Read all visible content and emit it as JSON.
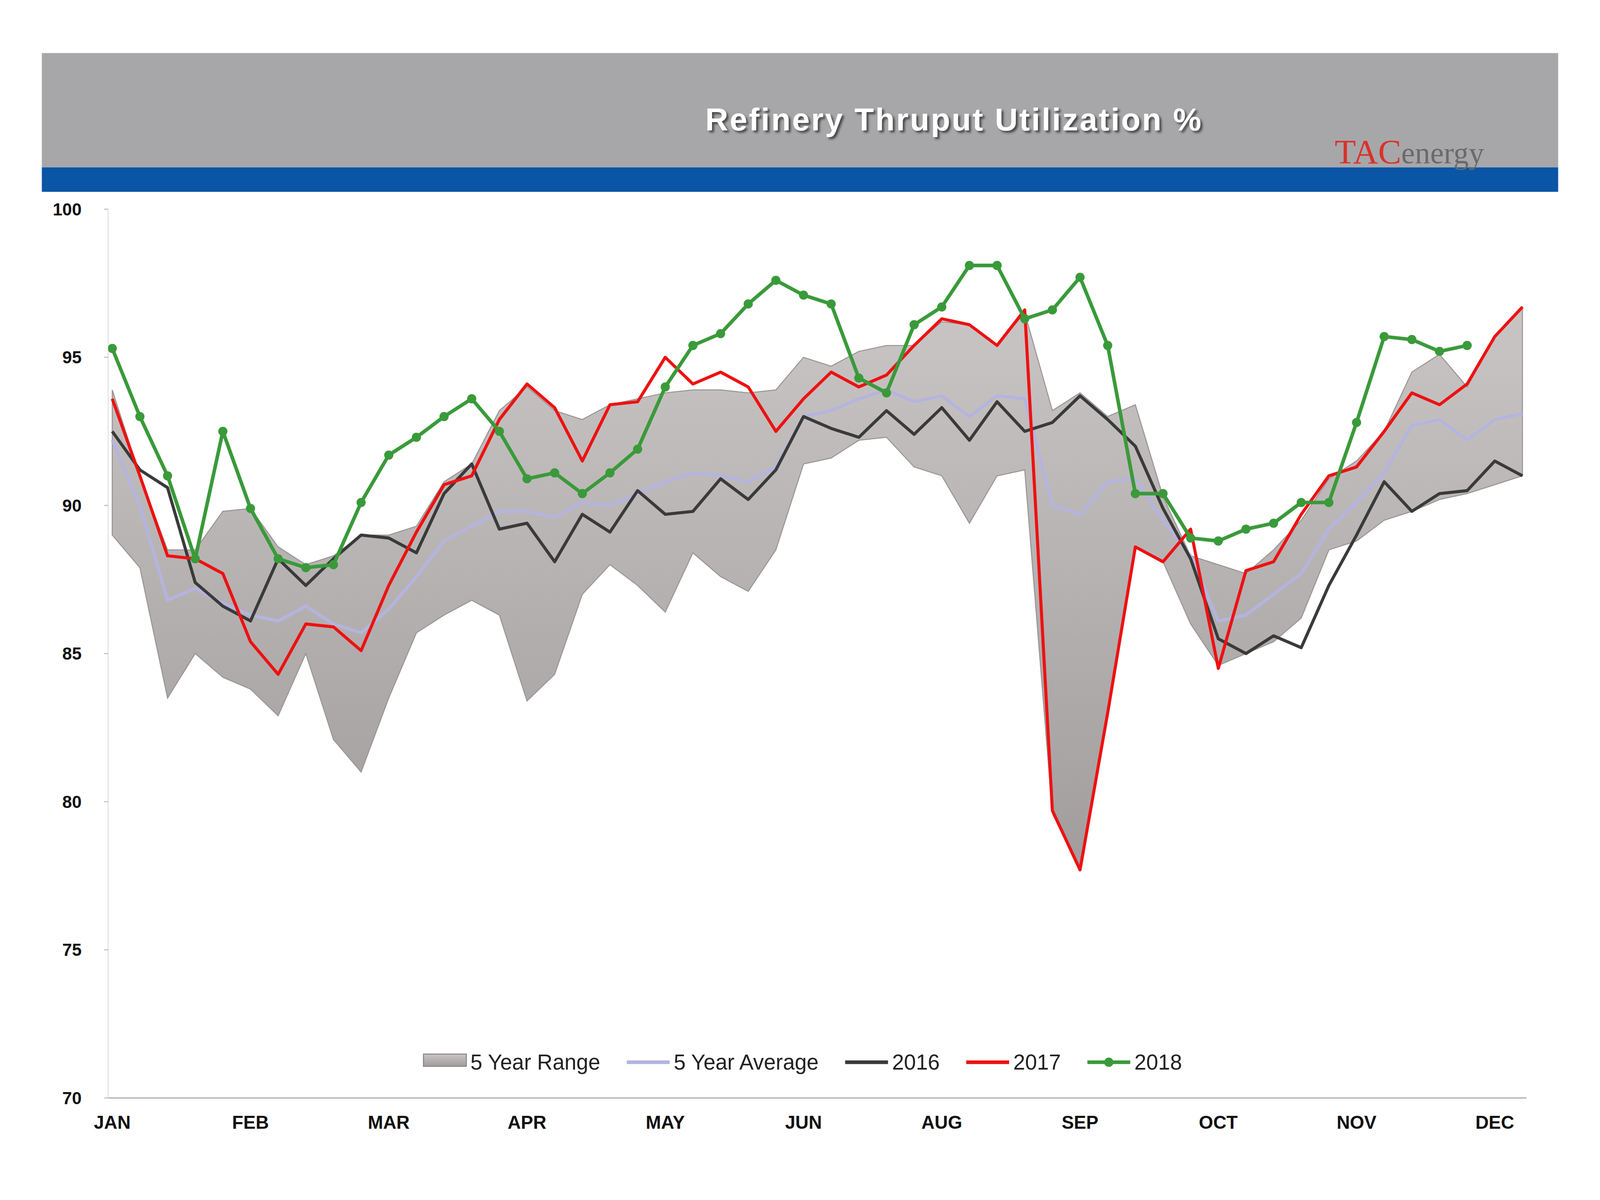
{
  "chart_data": {
    "type": "line",
    "title": "Refinery Thruput Utilization %",
    "logo": [
      "TAC",
      "energy"
    ],
    "categories": [
      "JAN",
      null,
      null,
      null,
      null,
      "FEB",
      null,
      null,
      null,
      null,
      "MAR",
      null,
      null,
      null,
      null,
      "APR",
      null,
      null,
      null,
      null,
      "MAY",
      null,
      null,
      null,
      null,
      "JUN",
      null,
      null,
      null,
      null,
      "AUG",
      null,
      null,
      null,
      null,
      "SEP",
      null,
      null,
      null,
      null,
      "OCT",
      null,
      null,
      null,
      null,
      "NOV",
      null,
      null,
      null,
      null,
      "DEC",
      null
    ],
    "ylim": [
      70,
      100
    ],
    "yticks": [
      70,
      75,
      80,
      85,
      90,
      95,
      100
    ],
    "grid": false,
    "legend": "bottom",
    "series": [
      {
        "name": "5 Year Range",
        "type": "range",
        "color": "#b3aeae",
        "values": [
          93.9,
          91.0,
          88.5,
          88.5,
          89.8,
          89.9,
          88.6,
          88.0,
          88.3,
          89.0,
          89.0,
          89.3,
          90.8,
          91.4,
          93.2,
          94.0,
          93.2,
          92.9,
          93.4,
          93.6,
          93.8,
          93.9,
          93.9,
          93.8,
          93.9,
          95.0,
          94.7,
          95.2,
          95.4,
          95.4,
          96.2,
          96.1,
          95.4,
          96.5,
          93.2,
          93.8,
          93.0,
          93.4,
          90.3,
          88.3,
          88.0,
          87.7,
          88.5,
          89.5,
          90.9,
          91.5,
          92.5,
          94.5,
          95.1,
          94.0,
          95.7,
          96.7
        ],
        "low": [
          89.0,
          87.9,
          83.5,
          85.0,
          84.2,
          83.8,
          82.9,
          85.0,
          82.1,
          81.0,
          83.5,
          85.7,
          86.3,
          86.8,
          86.3,
          83.4,
          84.3,
          87.0,
          88.0,
          87.3,
          86.4,
          88.4,
          87.6,
          87.1,
          88.5,
          91.4,
          91.6,
          92.2,
          92.3,
          91.3,
          91.0,
          89.4,
          91.0,
          91.2,
          79.6,
          77.7,
          83.0,
          88.6,
          88.1,
          86.0,
          84.6,
          85.0,
          85.4,
          86.2,
          88.5,
          88.8,
          89.5,
          89.8,
          90.2,
          90.4,
          90.7,
          91.0
        ]
      },
      {
        "name": "5 Year Average",
        "type": "line",
        "color": "#b4b4e0",
        "values": [
          92.2,
          90.0,
          86.8,
          87.2,
          86.7,
          86.3,
          86.1,
          86.6,
          86.0,
          85.7,
          86.5,
          87.6,
          88.8,
          89.3,
          89.8,
          89.8,
          89.6,
          90.1,
          90.0,
          90.4,
          90.8,
          91.1,
          91.0,
          90.8,
          91.3,
          93.0,
          93.2,
          93.6,
          93.9,
          93.5,
          93.7,
          93.0,
          93.7,
          93.6,
          90.0,
          89.7,
          90.8,
          90.9,
          89.5,
          88.3,
          86.1,
          86.3,
          87.0,
          87.7,
          89.2,
          90.1,
          91.1,
          92.7,
          92.9,
          92.2,
          92.9,
          93.1
        ]
      },
      {
        "name": "2016",
        "type": "line",
        "color": "#3a3a3a",
        "values": [
          92.5,
          91.2,
          90.6,
          87.4,
          86.6,
          86.1,
          88.2,
          87.3,
          88.2,
          89.0,
          88.9,
          88.4,
          90.4,
          91.4,
          89.2,
          89.4,
          88.1,
          89.7,
          89.1,
          90.5,
          89.7,
          89.8,
          90.9,
          90.2,
          91.2,
          93.0,
          92.6,
          92.3,
          93.2,
          92.4,
          93.3,
          92.2,
          93.5,
          92.5,
          92.8,
          93.7,
          92.9,
          92.0,
          89.9,
          88.2,
          85.5,
          85.0,
          85.6,
          85.2,
          87.3,
          89.0,
          90.8,
          89.8,
          90.4,
          90.5,
          91.5,
          91.0
        ]
      },
      {
        "name": "2017",
        "type": "line",
        "color": "#ee1111",
        "values": [
          93.6,
          91.0,
          88.3,
          88.2,
          87.7,
          85.4,
          84.3,
          86.0,
          85.9,
          85.1,
          87.3,
          89.1,
          90.7,
          91.0,
          92.9,
          94.1,
          93.3,
          91.5,
          93.4,
          93.5,
          95.0,
          94.1,
          94.5,
          94.0,
          92.5,
          93.6,
          94.5,
          94.0,
          94.4,
          95.4,
          96.3,
          96.1,
          95.4,
          96.6,
          79.7,
          77.7,
          83.0,
          88.6,
          88.1,
          89.2,
          84.5,
          87.8,
          88.1,
          89.7,
          91.0,
          91.3,
          92.5,
          93.8,
          93.4,
          94.1,
          95.7,
          96.7
        ]
      },
      {
        "name": "2018",
        "type": "line",
        "color": "#3a9a3a",
        "marker": "circle",
        "values": [
          95.3,
          93.0,
          91.0,
          88.2,
          92.5,
          89.9,
          88.2,
          87.9,
          88.0,
          90.1,
          91.7,
          92.3,
          93.0,
          93.6,
          92.5,
          90.9,
          91.1,
          90.4,
          91.1,
          91.9,
          94.0,
          95.4,
          95.8,
          96.8,
          97.6,
          97.1,
          96.8,
          94.3,
          93.8,
          96.1,
          96.7,
          98.1,
          98.1,
          96.3,
          96.6,
          97.7,
          95.4,
          90.4,
          90.4,
          88.9,
          88.8,
          89.2,
          89.4,
          90.1,
          90.1,
          92.8,
          95.7,
          95.6,
          95.2,
          95.4,
          null,
          null
        ]
      }
    ]
  }
}
